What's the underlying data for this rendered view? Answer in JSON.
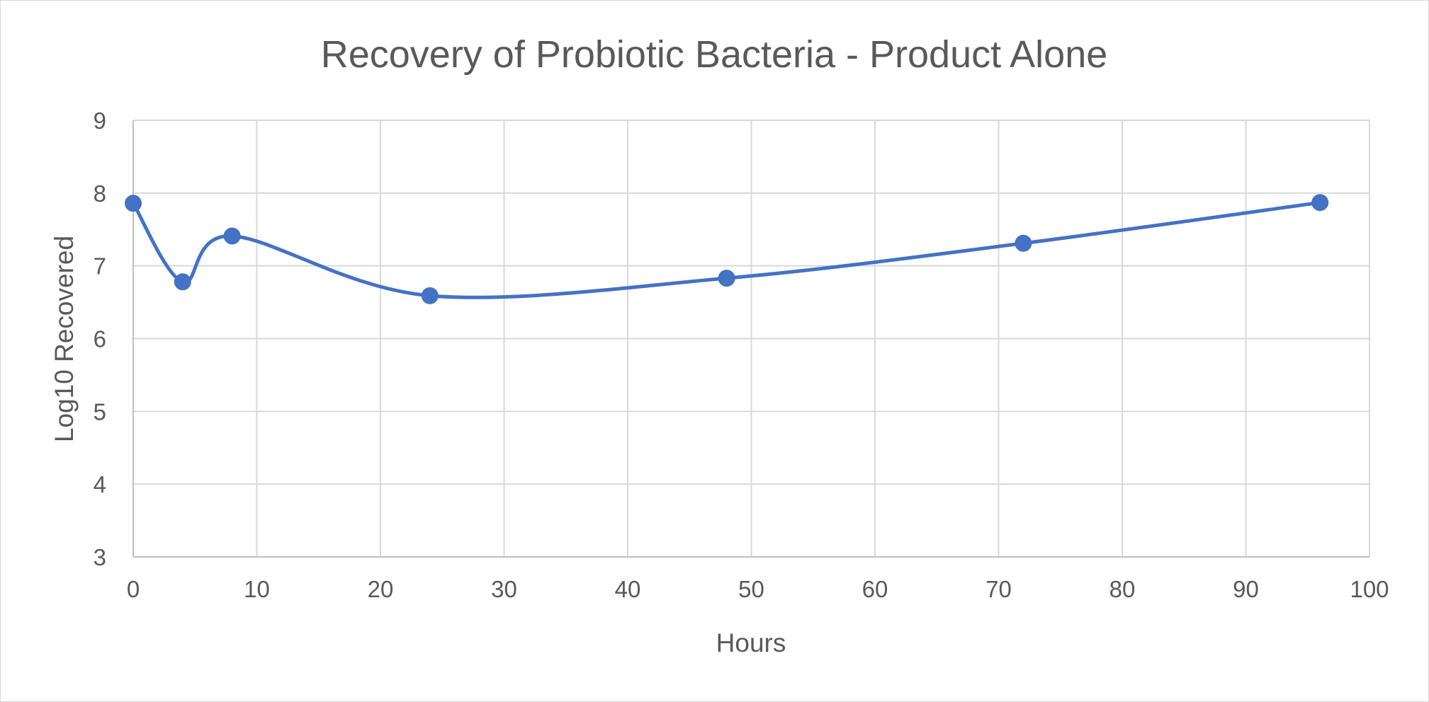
{
  "chart_data": {
    "type": "line",
    "title": "Recovery of Probiotic Bacteria - Product Alone",
    "xlabel": "Hours",
    "ylabel": "Log10 Recovered",
    "xlim": [
      0,
      100
    ],
    "ylim": [
      3,
      9
    ],
    "x_ticks": [
      "0",
      "10",
      "20",
      "30",
      "40",
      "50",
      "60",
      "70",
      "80",
      "90",
      "100"
    ],
    "y_ticks": [
      "3",
      "4",
      "5",
      "6",
      "7",
      "8",
      "9"
    ],
    "grid": true,
    "smoothed": true,
    "series": [
      {
        "color": "#4472c4",
        "x": [
          0,
          4,
          8,
          24,
          48,
          72,
          96
        ],
        "y": [
          7.86,
          6.78,
          7.41,
          6.59,
          6.83,
          7.31,
          7.87
        ]
      }
    ]
  }
}
